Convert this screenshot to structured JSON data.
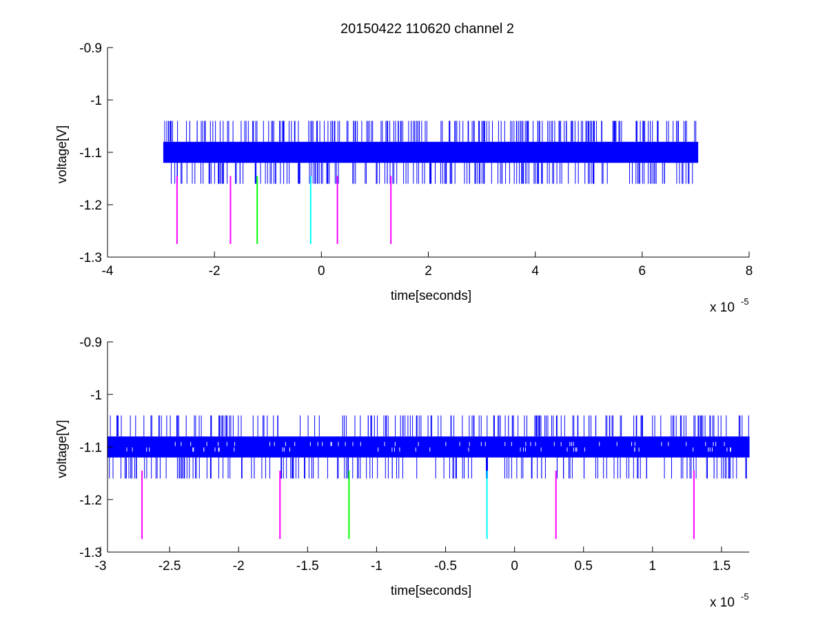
{
  "title": "20150422 110620 channel 2",
  "colors": {
    "signal": "#0000ff",
    "magenta": "#ff00ff",
    "green": "#00ff00",
    "cyan": "#00ffff",
    "axis": "#000000"
  },
  "chart_data": [
    {
      "type": "line",
      "title": "20150422 110620 channel 2",
      "xlabel": "time[seconds]",
      "ylabel": "voltage[V]",
      "x_exponent_label": "x 10",
      "x_exponent": "-5",
      "xlim": [
        -4,
        8
      ],
      "ylim": [
        -1.3,
        -0.9
      ],
      "xticks": [
        -4,
        -2,
        0,
        2,
        4,
        6,
        8
      ],
      "xtick_labels": [
        "-4",
        "-2",
        "0",
        "2",
        "4",
        "6",
        "8"
      ],
      "yticks": [
        -0.9,
        -1,
        -1.1,
        -1.2,
        -1.3
      ],
      "ytick_labels": [
        "-0.9",
        "-1",
        "-1.1",
        "-1.2",
        "-1.3"
      ],
      "signal": {
        "x_range": [
          -2.95,
          7.05
        ],
        "band": [
          -1.12,
          -1.08
        ],
        "spike_top": -1.04,
        "spike_bottom": -1.16
      },
      "markers": [
        {
          "x": -2.7,
          "color": "magenta",
          "y_range": [
            -1.275,
            -1.145
          ]
        },
        {
          "x": -1.7,
          "color": "magenta",
          "y_range": [
            -1.275,
            -1.145
          ]
        },
        {
          "x": -1.2,
          "color": "green",
          "y_range": [
            -1.275,
            -1.145
          ]
        },
        {
          "x": -0.2,
          "color": "cyan",
          "y_range": [
            -1.275,
            -1.145
          ]
        },
        {
          "x": 0.3,
          "color": "magenta",
          "y_range": [
            -1.275,
            -1.145
          ]
        },
        {
          "x": 1.3,
          "color": "magenta",
          "y_range": [
            -1.275,
            -1.145
          ]
        }
      ],
      "grid": false
    },
    {
      "type": "line",
      "xlabel": "time[seconds]",
      "ylabel": "voltage[V]",
      "x_exponent_label": "x 10",
      "x_exponent": "-5",
      "xlim": [
        -2.95,
        1.7
      ],
      "ylim": [
        -1.3,
        -0.9
      ],
      "xticks": [
        -3,
        -2.5,
        -2,
        -1.5,
        -1,
        -0.5,
        0,
        0.5,
        1,
        1.5
      ],
      "xtick_labels": [
        "-3",
        "-2.5",
        "-2",
        "-1.5",
        "-1",
        "-0.5",
        "0",
        "0.5",
        "1",
        "1.5"
      ],
      "yticks": [
        -0.9,
        -1,
        -1.1,
        -1.2,
        -1.3
      ],
      "ytick_labels": [
        "-0.9",
        "-1",
        "-1.1",
        "-1.2",
        "-1.3"
      ],
      "signal": {
        "x_range": [
          -2.95,
          1.7
        ],
        "band": [
          -1.12,
          -1.08
        ],
        "spike_top": -1.04,
        "spike_bottom": -1.16
      },
      "markers": [
        {
          "x": -2.7,
          "color": "magenta",
          "y_range": [
            -1.275,
            -1.145
          ]
        },
        {
          "x": -1.7,
          "color": "magenta",
          "y_range": [
            -1.275,
            -1.145
          ]
        },
        {
          "x": -1.2,
          "color": "green",
          "y_range": [
            -1.275,
            -1.145
          ]
        },
        {
          "x": -0.2,
          "color": "cyan",
          "y_range": [
            -1.275,
            -1.145
          ]
        },
        {
          "x": 0.3,
          "color": "magenta",
          "y_range": [
            -1.275,
            -1.145
          ]
        },
        {
          "x": 1.3,
          "color": "magenta",
          "y_range": [
            -1.275,
            -1.145
          ]
        }
      ],
      "grid": false
    }
  ]
}
